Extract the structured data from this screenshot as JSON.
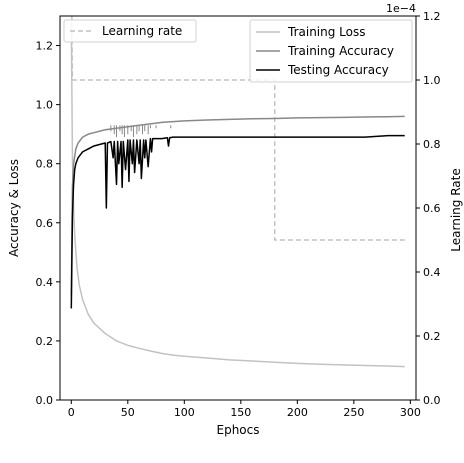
{
  "chart_data": {
    "type": "line",
    "xlabel": "Ephocs",
    "ylabel_left": "Accuracy & Loss",
    "ylabel_right": "Learning Rate",
    "right_axis_multiplier": "1e−4",
    "xlim": [
      -10,
      305
    ],
    "ylim_left": [
      0,
      1.3
    ],
    "ylim_right": [
      0,
      1.2
    ],
    "x_ticks": [
      0,
      50,
      100,
      150,
      200,
      250,
      300
    ],
    "x_tick_labels": [
      "0",
      "50",
      "100",
      "150",
      "200",
      "250",
      "300"
    ],
    "y_left_ticks": [
      0,
      0.2,
      0.4,
      0.6,
      0.8,
      1.0,
      1.2
    ],
    "y_left_tick_labels": [
      "0.0",
      "0.2",
      "0.4",
      "0.6",
      "0.8",
      "1.0",
      "1.2"
    ],
    "y_right_ticks": [
      0,
      0.2,
      0.4,
      0.6,
      0.8,
      1.0,
      1.2
    ],
    "y_right_tick_labels": [
      "0.0",
      "0.2",
      "0.4",
      "0.6",
      "0.8",
      "1.0",
      "1.2"
    ],
    "grid": false,
    "legend_left": {
      "position": "top-left",
      "entries": [
        "Learning rate"
      ]
    },
    "legend_right": {
      "position": "top-right",
      "entries": [
        "Training Loss",
        "Training Accuracy",
        "Testing Accuracy"
      ]
    },
    "series": [
      {
        "name": "Learning rate",
        "axis": "right",
        "style": "dashed",
        "color": "#c2c2c2",
        "x": [
          0,
          0.5,
          1,
          180,
          180,
          295
        ],
        "y": [
          1.2,
          1.2,
          1.0,
          1.0,
          0.5,
          0.5
        ]
      },
      {
        "name": "Training Loss",
        "axis": "left",
        "style": "solid",
        "color": "#c2c2c2",
        "x": [
          0,
          0.5,
          1,
          2,
          3,
          5,
          7,
          10,
          15,
          20,
          30,
          40,
          50,
          60,
          70,
          80,
          90,
          100,
          120,
          140,
          160,
          180,
          200,
          220,
          240,
          260,
          280,
          295
        ],
        "y": [
          1.28,
          1.05,
          0.82,
          0.65,
          0.56,
          0.45,
          0.39,
          0.34,
          0.29,
          0.26,
          0.225,
          0.2,
          0.185,
          0.175,
          0.166,
          0.158,
          0.152,
          0.148,
          0.142,
          0.136,
          0.132,
          0.128,
          0.124,
          0.121,
          0.119,
          0.117,
          0.115,
          0.113
        ]
      },
      {
        "name": "Training Accuracy",
        "axis": "left",
        "style": "solid",
        "color": "#888888",
        "x": [
          0,
          1,
          2,
          4,
          6,
          10,
          15,
          20,
          30,
          40,
          50,
          60,
          70,
          80,
          100,
          120,
          140,
          160,
          180,
          200,
          220,
          240,
          260,
          280,
          295
        ],
        "y": [
          0.35,
          0.72,
          0.8,
          0.85,
          0.87,
          0.89,
          0.9,
          0.905,
          0.915,
          0.92,
          0.925,
          0.93,
          0.935,
          0.94,
          0.945,
          0.948,
          0.95,
          0.952,
          0.953,
          0.955,
          0.956,
          0.957,
          0.958,
          0.959,
          0.96
        ]
      },
      {
        "name": "Testing Accuracy",
        "axis": "left",
        "style": "solid",
        "color": "#000000",
        "x": [
          0,
          1,
          2,
          3,
          4,
          6,
          8,
          10,
          15,
          20,
          25,
          30,
          31,
          32,
          35,
          37,
          38,
          40,
          41,
          42,
          44,
          45,
          46,
          48,
          50,
          51,
          52,
          54,
          55,
          56,
          58,
          60,
          61,
          62,
          64,
          65,
          66,
          68,
          70,
          71,
          72,
          75,
          80,
          85,
          86,
          87,
          90,
          100,
          120,
          140,
          160,
          180,
          200,
          220,
          240,
          260,
          280,
          295
        ],
        "y": [
          0.31,
          0.62,
          0.73,
          0.78,
          0.8,
          0.82,
          0.83,
          0.84,
          0.85,
          0.86,
          0.865,
          0.87,
          0.65,
          0.87,
          0.875,
          0.82,
          0.875,
          0.73,
          0.875,
          0.8,
          0.875,
          0.72,
          0.875,
          0.78,
          0.88,
          0.74,
          0.88,
          0.8,
          0.88,
          0.77,
          0.88,
          0.8,
          0.88,
          0.75,
          0.88,
          0.82,
          0.88,
          0.79,
          0.885,
          0.84,
          0.885,
          0.885,
          0.885,
          0.888,
          0.86,
          0.888,
          0.89,
          0.89,
          0.89,
          0.89,
          0.89,
          0.89,
          0.89,
          0.89,
          0.89,
          0.89,
          0.895,
          0.895
        ]
      }
    ],
    "training_accuracy_noise_x": [
      35,
      38,
      40,
      43,
      45,
      47,
      50,
      53,
      55,
      58,
      60,
      63,
      65,
      68,
      70,
      75,
      85,
      88
    ],
    "training_accuracy_noise_y": [
      0.91,
      0.9,
      0.89,
      0.91,
      0.9,
      0.89,
      0.9,
      0.91,
      0.89,
      0.9,
      0.91,
      0.9,
      0.91,
      0.9,
      0.92,
      0.92,
      0.93,
      0.92
    ]
  }
}
